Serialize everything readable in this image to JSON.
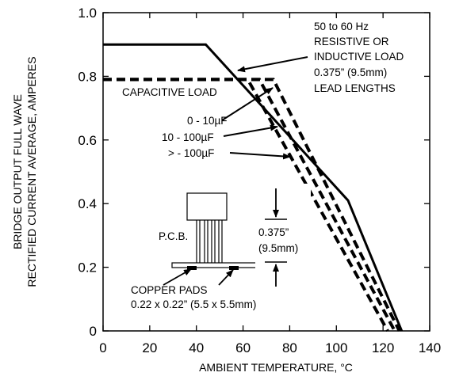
{
  "chart_data": {
    "type": "line",
    "title": "",
    "xlabel": "AMBIENT TEMPERATURE, °C",
    "ylabel_lines": [
      "BRIDGE OUTPUT FULL WAVE",
      "RECTIFIED CURRENT AVERAGE, AMPERES"
    ],
    "xlim": [
      0,
      140
    ],
    "ylim": [
      0,
      1.0
    ],
    "x_ticks": [
      0,
      20,
      40,
      60,
      80,
      100,
      120,
      140
    ],
    "x_tick_labels": [
      "0",
      "20",
      "40",
      "60",
      "80",
      "100",
      "120",
      "140"
    ],
    "y_ticks": [
      0,
      0.2,
      0.4,
      0.6,
      0.8,
      1.0
    ],
    "y_tick_labels": [
      "0",
      "0.2",
      "0.4",
      "0.6",
      "0.8",
      "1.0"
    ],
    "grid": false,
    "series": [
      {
        "key": "resistive",
        "style": "solid",
        "x": [
          0,
          44,
          105,
          128
        ],
        "y": [
          0.9,
          0.9,
          0.41,
          0
        ]
      },
      {
        "key": "cap_0_10",
        "style": "dashed",
        "x": [
          0,
          62,
          122
        ],
        "y": [
          0.79,
          0.79,
          0
        ]
      },
      {
        "key": "cap_10_100",
        "style": "dashed",
        "x": [
          0,
          67,
          125
        ],
        "y": [
          0.79,
          0.79,
          0
        ]
      },
      {
        "key": "cap_gt_100",
        "style": "dashed",
        "x": [
          0,
          73,
          127
        ],
        "y": [
          0.79,
          0.79,
          0
        ]
      }
    ],
    "annotations": {
      "resistive_lines": [
        "50 to 60 Hz",
        "RESISTIVE OR",
        "INDUCTIVE LOAD",
        "0.375” (9.5mm)",
        "LEAD LENGTHS"
      ],
      "capacitive": "CAPACITIVE LOAD",
      "cap_0_10": "0 - 10µF",
      "cap_10_100": "10 - 100µF",
      "cap_gt_100": "> - 100µF",
      "pcb": "P.C.B.",
      "lead_length_lines": [
        "0.375”",
        "(9.5mm)"
      ],
      "copper_pads_lines": [
        "COPPER PADS",
        "0.22 x 0.22” (5.5 x 5.5mm)"
      ]
    }
  }
}
